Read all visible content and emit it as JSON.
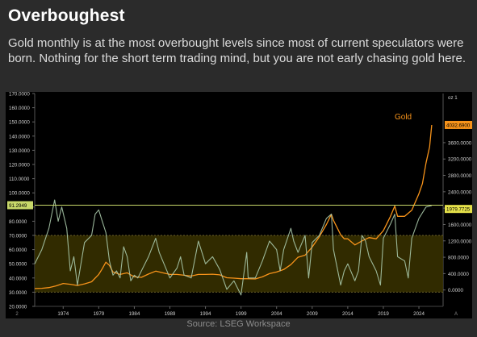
{
  "header": {
    "title": "Overboughest",
    "subtitle": "Gold monthly is at the most overbought levels since most of current speculators were born. Nothing for the short term trading mind, but you are not early chasing gold here."
  },
  "footer": {
    "source": "Source: LSEG Workspace"
  },
  "colors": {
    "gold": "#f7931a",
    "rsi": "#a8c8a8",
    "band": "#3a3200",
    "hline": "#c8d86a",
    "bg": "#000000"
  },
  "chart_data": {
    "type": "line",
    "xlabel": "",
    "ylabel": "",
    "x_ticks": [
      "1974",
      "1979",
      "1984",
      "1989",
      "1994",
      "1999",
      "2004",
      "2009",
      "2014",
      "2019",
      "2024"
    ],
    "left_axis": {
      "ylim": [
        20,
        170
      ],
      "ticks": [
        "20.0000",
        "30.0000",
        "40.0000",
        "50.0000",
        "60.0000",
        "70.0000",
        "80.0000",
        "90.0000",
        "100.0000",
        "110.0000",
        "120.0000",
        "130.0000",
        "140.0000",
        "150.0000",
        "160.0000",
        "170.0000"
      ]
    },
    "right_axis": {
      "ylim": [
        -400,
        4800
      ],
      "ticks": [
        "0.0000",
        "400.0000",
        "800.0000",
        "1200.0000",
        "1600.0000",
        "2000.0000",
        "2400.0000",
        "2800.0000",
        "3200.0000",
        "3600.0000"
      ],
      "top_label": "oz 1"
    },
    "band": {
      "from": 30,
      "to": 70
    },
    "hline": {
      "value": 91.2949,
      "label": "91.2949"
    },
    "right_marker": {
      "value": 1979.7725,
      "label": "1979.7725"
    },
    "last_marker": {
      "value": 4032.69,
      "label": "4032.6900"
    },
    "left_bottom_label": "2",
    "right_bottom_label": "A",
    "series": [
      {
        "name": "Gold",
        "axis": "right",
        "x": [
          1970,
          1971,
          1972,
          1973,
          1974,
          1975,
          1976,
          1977,
          1978,
          1979,
          1979.5,
          1980,
          1980.5,
          1981,
          1982,
          1983,
          1984,
          1985,
          1986,
          1987,
          1988,
          1989,
          1990,
          1991,
          1992,
          1993,
          1994,
          1995,
          1996,
          1997,
          1998,
          1999,
          2000,
          2001,
          2002,
          2003,
          2004,
          2005,
          2006,
          2007,
          2008,
          2009,
          2010,
          2011,
          2011.7,
          2012,
          2013,
          2013.5,
          2014,
          2015,
          2016,
          2017,
          2018,
          2019,
          2020,
          2020.6,
          2021,
          2022,
          2023,
          2024,
          2024.5,
          2025,
          2025.5,
          2025.8
        ],
        "values": [
          35,
          42,
          58,
          100,
          160,
          140,
          110,
          150,
          200,
          380,
          520,
          680,
          600,
          440,
          380,
          420,
          320,
          310,
          390,
          460,
          420,
          380,
          380,
          360,
          340,
          380,
          380,
          385,
          370,
          300,
          290,
          275,
          275,
          270,
          320,
          400,
          440,
          500,
          620,
          800,
          850,
          1050,
          1300,
          1600,
          1850,
          1700,
          1350,
          1250,
          1250,
          1100,
          1200,
          1280,
          1250,
          1450,
          1800,
          2050,
          1800,
          1800,
          1950,
          2350,
          2600,
          3100,
          3500,
          4032.69
        ]
      },
      {
        "name": "",
        "axis": "left",
        "x": [
          1970,
          1971,
          1972,
          1972.8,
          1973.3,
          1973.8,
          1974.5,
          1975,
          1975.5,
          1976,
          1976.5,
          1977,
          1978,
          1978.5,
          1979,
          1979.5,
          1980,
          1980.5,
          1981,
          1981.5,
          1982,
          1982.5,
          1983,
          1983.5,
          1984,
          1984.5,
          1985,
          1986,
          1987,
          1987.5,
          1988,
          1989,
          1990,
          1990.5,
          1991,
          1992,
          1993,
          1993.5,
          1994,
          1995,
          1996,
          1997,
          1998,
          1999,
          1999.8,
          2000,
          2001,
          2002,
          2003,
          2004,
          2004.5,
          2005,
          2006,
          2006.4,
          2007,
          2008,
          2008.5,
          2009,
          2010,
          2011,
          2011.7,
          2012,
          2013,
          2013.5,
          2014,
          2015,
          2015.5,
          2016,
          2016.5,
          2017,
          2018,
          2018.6,
          2019,
          2020,
          2020.6,
          2021,
          2022,
          2022.5,
          2023,
          2024,
          2025,
          2025.8
        ],
        "values": [
          50,
          60,
          75,
          95,
          80,
          90,
          75,
          45,
          55,
          35,
          50,
          65,
          70,
          85,
          88,
          80,
          72,
          52,
          42,
          45,
          40,
          62,
          55,
          38,
          42,
          40,
          45,
          55,
          68,
          58,
          52,
          40,
          47,
          55,
          42,
          40,
          66,
          58,
          50,
          55,
          46,
          32,
          38,
          28,
          58,
          40,
          40,
          52,
          66,
          60,
          45,
          60,
          75,
          66,
          58,
          70,
          40,
          65,
          70,
          82,
          85,
          60,
          35,
          45,
          50,
          38,
          45,
          70,
          66,
          55,
          45,
          35,
          68,
          78,
          85,
          55,
          52,
          40,
          68,
          82,
          90,
          91
        ]
      }
    ]
  }
}
